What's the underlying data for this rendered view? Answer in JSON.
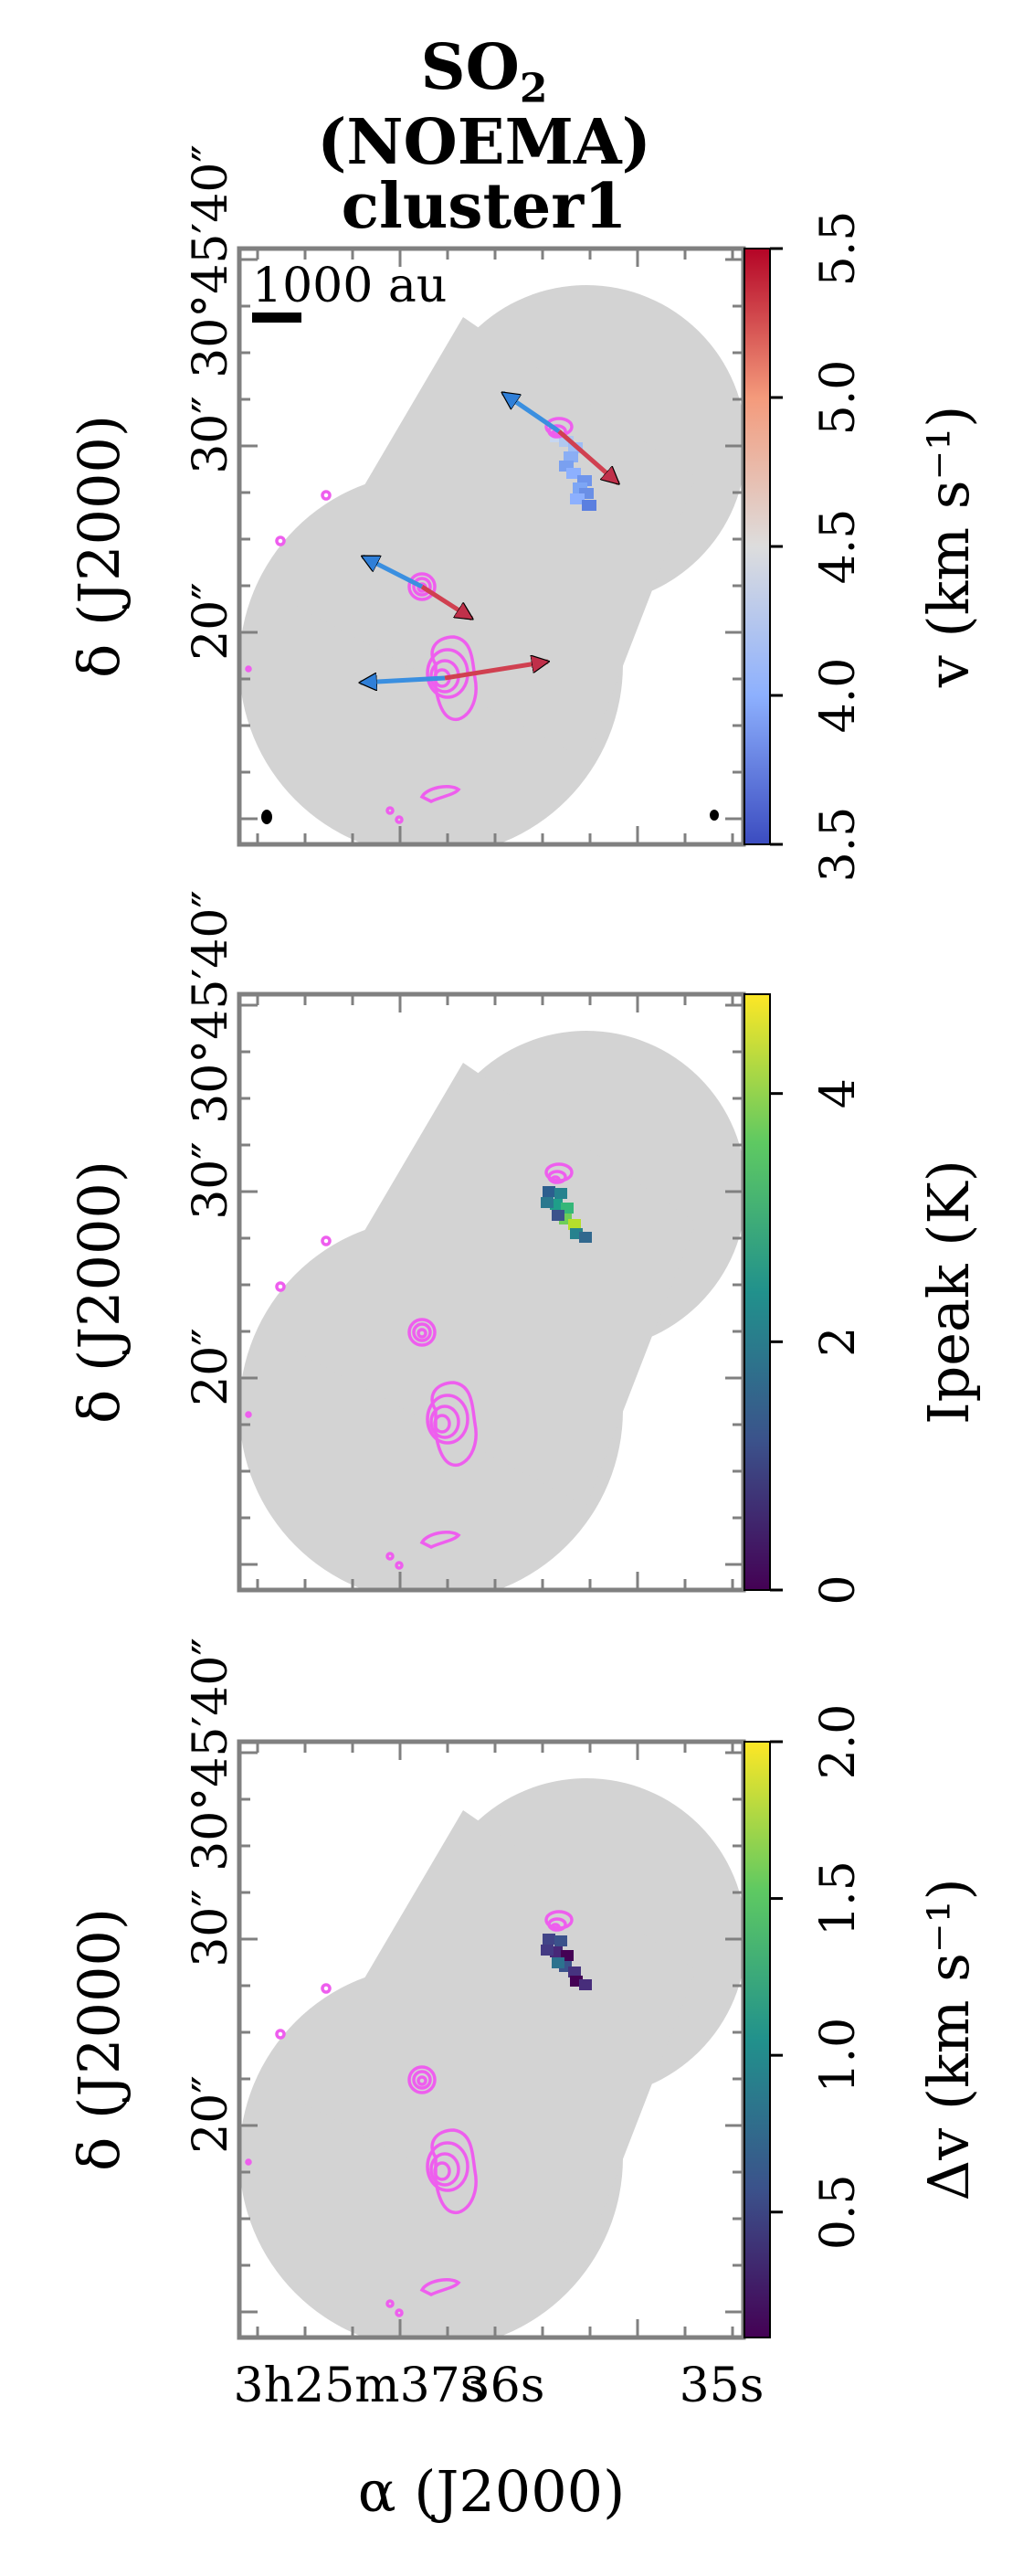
{
  "title": {
    "line1": "SO₂",
    "line2": "(NOEMA)",
    "line3": "cluster1"
  },
  "colors": {
    "contour": "#ee5eee",
    "mask": "#d3d3d3",
    "frame": "#808080",
    "outflow_red": "#d04050",
    "outflow_blue": "#3a8fe0"
  },
  "chart_data": [
    {
      "type": "heatmap",
      "panel": "velocity",
      "ylabel": "δ (J2000)",
      "yticklabels": [
        "30°45′40″",
        "30″",
        "20″"
      ],
      "colorbar": {
        "label": "v (km s⁻¹)",
        "colormap": "coolwarm",
        "range": [
          3.5,
          5.5
        ],
        "ticks": [
          "3.5",
          "4.0",
          "4.5",
          "5.0",
          "5.5"
        ]
      },
      "scalebar_label": "1000 au",
      "outflows": [
        {
          "source": "north",
          "dra": [
            0.18,
            -0.19
          ],
          "ddec": [
            4.2,
            -5.7
          ]
        },
        {
          "source": "middle",
          "dra": [
            0.19,
            -0.16
          ],
          "ddec": [
            3.3,
            -3.5
          ]
        },
        {
          "source": "south",
          "dra": [
            0.27,
            -0.33
          ],
          "ddec": [
            -0.5,
            1.8
          ]
        }
      ]
    },
    {
      "type": "heatmap",
      "panel": "peak intensity",
      "ylabel": "δ (J2000)",
      "yticklabels": [
        "30°45′40″",
        "30″",
        "20″"
      ],
      "colorbar": {
        "label": "Ipeak (K)",
        "colormap": "viridis",
        "range": [
          0,
          4.8
        ],
        "ticks": [
          "0",
          "2",
          "4"
        ]
      }
    },
    {
      "type": "heatmap",
      "panel": "line width",
      "ylabel": "δ (J2000)",
      "yticklabels": [
        "30°45′40″",
        "30″",
        "20″"
      ],
      "xlabel": "α (J2000)",
      "xticklabels": [
        "3h25m37s",
        "36s",
        "35s"
      ],
      "colorbar": {
        "label": "Δv (km s⁻¹)",
        "colormap": "viridis",
        "range": [
          0.1,
          2.0
        ],
        "ticks": [
          "0.5",
          "1.0",
          "1.5",
          "2.0"
        ]
      }
    }
  ]
}
